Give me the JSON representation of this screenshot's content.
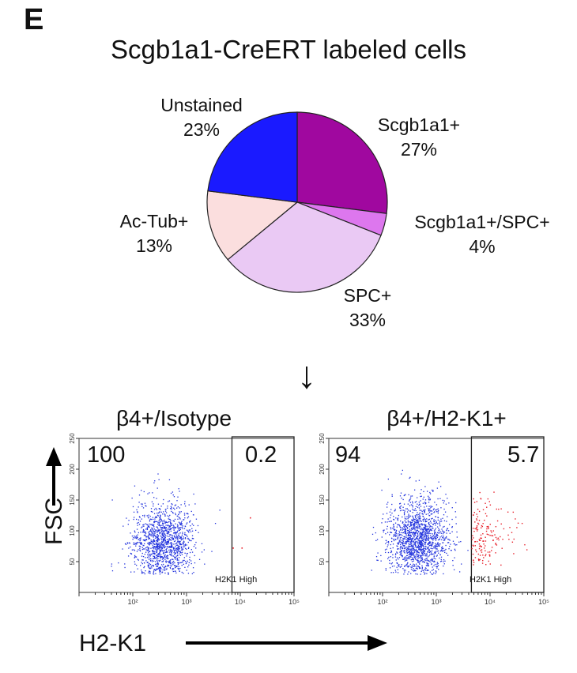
{
  "panel_letter": "E",
  "title": "Scgb1a1-CreERT labeled cells",
  "colors": {
    "scgb1a1": "#a0089f",
    "scgb1a1_spc": "#dd77ee",
    "spc": "#eac9f4",
    "actub": "#fbdede",
    "unstained": "#1a1aff",
    "negative_events": "#2233dd",
    "high_events": "#e8202a"
  },
  "chart_data": [
    {
      "type": "pie",
      "title": "Scgb1a1-CreERT labeled cells",
      "slices": [
        {
          "label": "Scgb1a1+",
          "value": 27,
          "text": "27%"
        },
        {
          "label": "Scgb1a1+/SPC+",
          "value": 4,
          "text": "4%"
        },
        {
          "label": "SPC+",
          "value": 33,
          "text": "33%"
        },
        {
          "label": "Ac-Tub+",
          "value": 13,
          "text": "13%"
        },
        {
          "label": "Unstained",
          "value": 23,
          "text": "23%"
        }
      ]
    },
    {
      "type": "scatter",
      "title": "β4+/Isotype",
      "xlabel": "H2-K1",
      "ylabel": "FSC",
      "x_scale": "log",
      "xlim": [
        10,
        100000
      ],
      "ylim": [
        0,
        250
      ],
      "y_ticks": [
        50,
        100,
        150,
        200,
        250
      ],
      "x_ticks": [
        "10²",
        "10³",
        "10⁴",
        "10⁵"
      ],
      "gate": {
        "label": "H2K1 High",
        "x_min": 7000,
        "x_max": 100000
      },
      "negative_percent": "100",
      "high_percent": "0.2",
      "cluster": {
        "x_center": 350,
        "y_center": 78,
        "count": 1300
      },
      "high_events": [
        {
          "x": 15000,
          "y": 122
        },
        {
          "x": 7200,
          "y": 73
        },
        {
          "x": 10500,
          "y": 73
        }
      ]
    },
    {
      "type": "scatter",
      "title": "β4+/H2-K1+",
      "xlabel": "H2-K1",
      "ylabel": "FSC",
      "x_scale": "log",
      "xlim": [
        10,
        100000
      ],
      "ylim": [
        0,
        250
      ],
      "y_ticks": [
        50,
        100,
        150,
        200,
        250
      ],
      "x_ticks": [
        "10²",
        "10³",
        "10⁴",
        "10⁵"
      ],
      "gate": {
        "label": "H2K1 High",
        "x_min": 4500,
        "x_max": 100000
      },
      "negative_percent": "94",
      "high_percent": "5.7",
      "cluster": {
        "x_center": 450,
        "y_center": 85,
        "count": 1500
      },
      "high_event_count": 160
    }
  ],
  "arrow_down": "↓"
}
